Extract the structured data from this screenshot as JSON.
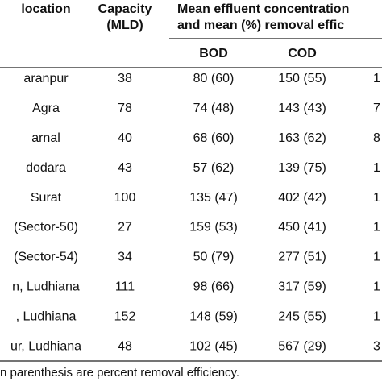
{
  "table": {
    "header": {
      "location": "location",
      "capacity": [
        "Capacity",
        "(MLD)"
      ],
      "mean": [
        "Mean effluent concentration",
        "and mean (%) removal effic"
      ],
      "sub": [
        "BOD",
        "COD"
      ]
    },
    "rows": [
      [
        "aranpur",
        "38",
        "80 (60)",
        "150 (55)",
        "1"
      ],
      [
        "Agra",
        "78",
        "74 (48)",
        "143 (43)",
        "7"
      ],
      [
        "arnal",
        "40",
        "68 (60)",
        "163 (62)",
        "8"
      ],
      [
        "dodara",
        "43",
        "57 (62)",
        "139 (75)",
        "1"
      ],
      [
        "Surat",
        "100",
        "135 (47)",
        "402 (42)",
        "1"
      ],
      [
        "(Sector-50)",
        "27",
        "159 (53)",
        "450 (41)",
        "1"
      ],
      [
        "(Sector-54)",
        "34",
        "50 (79)",
        "277 (51)",
        "1"
      ],
      [
        "n, Ludhiana",
        "111",
        "98 (66)",
        "317 (59)",
        "1"
      ],
      [
        ", Ludhiana",
        "152",
        "148 (59)",
        "245 (55)",
        "1"
      ],
      [
        "ur, Ludhiana",
        "48",
        "102 (45)",
        "567 (29)",
        "3"
      ]
    ],
    "footnote": "n parenthesis are percent removal efficiency."
  }
}
